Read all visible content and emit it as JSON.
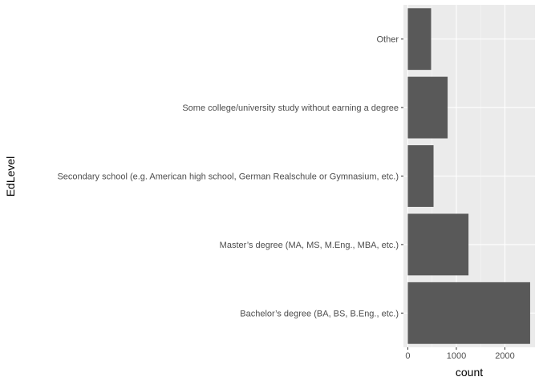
{
  "chart_data": {
    "type": "bar",
    "orientation": "horizontal",
    "categories": [
      "Bachelor’s degree (BA, BS, B.Eng., etc.)",
      "Master’s degree (MA, MS, M.Eng., MBA, etc.)",
      "Secondary school (e.g. American high school, German Realschule or Gymnasium, etc.)",
      "Some college/university study without earning a degree",
      "Other"
    ],
    "values": [
      2520,
      1250,
      530,
      820,
      480
    ],
    "xlabel": "count",
    "ylabel": "EdLevel",
    "xlim": [
      -90,
      2620
    ],
    "xticks": [
      0,
      1000,
      2000
    ],
    "xtick_labels": [
      "0",
      "1000",
      "2000"
    ],
    "grid": true,
    "colors": {
      "panel_background": "#ebebeb",
      "grid_major": "#ffffff",
      "bar_fill": "#595959",
      "tick_text": "#4d4d4d",
      "tick_mark": "#333333"
    }
  }
}
